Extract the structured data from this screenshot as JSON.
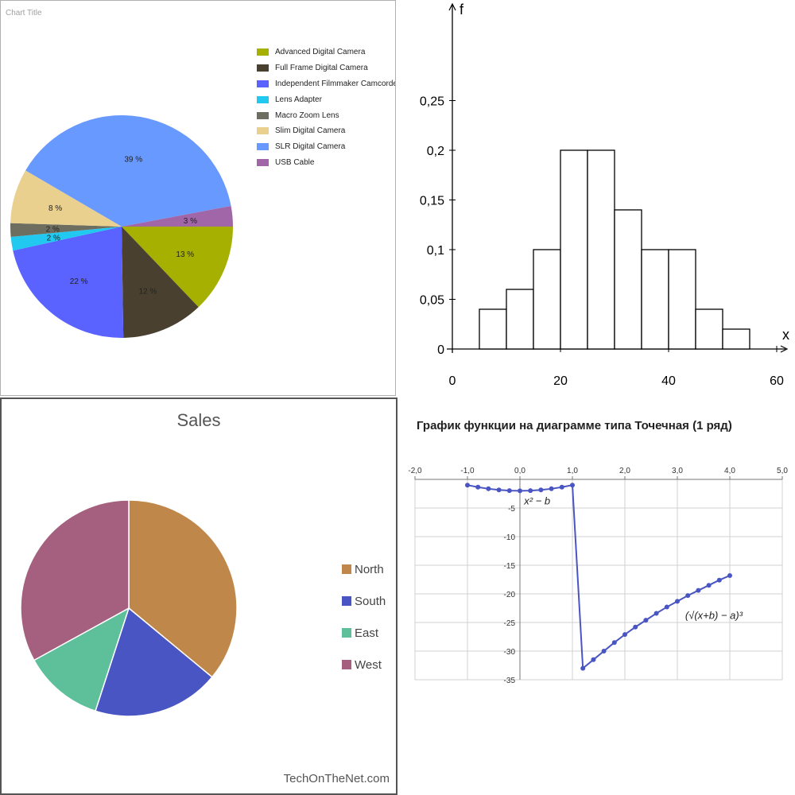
{
  "pie_chart": {
    "title": "Chart Title",
    "legend": [
      {
        "label": "Advanced Digital Camera",
        "color": "#a6b000"
      },
      {
        "label": "Full Frame Digital Camera",
        "color": "#4a4030"
      },
      {
        "label": "Independent Filmmaker Camcorder",
        "color": "#5a62ff"
      },
      {
        "label": "Lens Adapter",
        "color": "#21c8f0"
      },
      {
        "label": "Macro Zoom Lens",
        "color": "#6e6e60"
      },
      {
        "label": "Slim Digital Camera",
        "color": "#ead08e"
      },
      {
        "label": "SLR Digital Camera",
        "color": "#6899ff"
      },
      {
        "label": "USB Cable",
        "color": "#a066a8"
      }
    ]
  },
  "histogram": {
    "x_axis_label": "x",
    "y_axis_label": "f",
    "x_ticks": [
      "0",
      "20",
      "40",
      "60"
    ],
    "y_ticks": [
      "0",
      "0,05",
      "0,1",
      "0,15",
      "0,2",
      "0,25"
    ]
  },
  "sales_chart": {
    "title": "Sales",
    "watermark": "TechOnTheNet.com",
    "legend": [
      {
        "label": "North",
        "color": "#c0874a"
      },
      {
        "label": "South",
        "color": "#4a55c4"
      },
      {
        "label": "East",
        "color": "#5ec09a"
      },
      {
        "label": "West",
        "color": "#a4607e"
      }
    ]
  },
  "scatter_chart": {
    "title": "График функции на диаграмме типа Точечная (1 ряд)",
    "x_ticks": [
      "-2,0",
      "-1,0",
      "0,0",
      "1,0",
      "2,0",
      "3,0",
      "4,0",
      "5,0"
    ],
    "y_ticks": [
      "-5",
      "-10",
      "-15",
      "-20",
      "-25",
      "-30",
      "-35"
    ],
    "annotation_left": "x² − b",
    "annotation_right": "(√(x+b) − a)³",
    "line_color": "#4a55c4"
  },
  "chart_data": [
    {
      "type": "pie",
      "title": "Chart Title",
      "categories": [
        "Advanced Digital Camera",
        "Full Frame Digital Camera",
        "Independent Filmmaker Camcorder",
        "Lens Adapter",
        "Macro Zoom Lens",
        "Slim Digital Camera",
        "SLR Digital Camera",
        "USB Cable"
      ],
      "values": [
        13,
        12,
        22,
        2,
        2,
        8,
        39,
        3
      ],
      "labels": [
        "13 %",
        "12 %",
        "22 %",
        "2 %",
        "2 %",
        "8 %",
        "39 %",
        "3 %"
      ],
      "legend": "right"
    },
    {
      "type": "bar",
      "bins": [
        [
          5,
          10
        ],
        [
          10,
          15
        ],
        [
          15,
          20
        ],
        [
          20,
          25
        ],
        [
          25,
          30
        ],
        [
          30,
          35
        ],
        [
          35,
          40
        ],
        [
          40,
          45
        ],
        [
          45,
          50
        ],
        [
          50,
          55
        ]
      ],
      "values": [
        0.04,
        0.06,
        0.1,
        0.2,
        0.2,
        0.14,
        0.1,
        0.1,
        0.04,
        0.02
      ],
      "xlabel": "x",
      "ylabel": "f",
      "xlim": [
        0,
        60
      ],
      "ylim": [
        0,
        0.25
      ]
    },
    {
      "type": "pie",
      "title": "Sales",
      "categories": [
        "North",
        "South",
        "East",
        "West"
      ],
      "values": [
        36,
        19,
        12,
        33
      ],
      "legend": "right"
    },
    {
      "type": "scatter",
      "title": "График функции на диаграмме типа Точечная (1 ряд)",
      "x": [
        -1.0,
        -0.8,
        -0.6,
        -0.4,
        -0.2,
        0.0,
        0.2,
        0.4,
        0.6,
        0.8,
        1.0,
        1.2,
        1.4,
        1.6,
        1.8,
        2.0,
        2.2,
        2.4,
        2.6,
        2.8,
        3.0,
        3.2,
        3.4,
        3.6,
        3.8,
        4.0
      ],
      "y": [
        -1.0,
        -1.36,
        -1.64,
        -1.84,
        -1.96,
        -2.0,
        -1.96,
        -1.84,
        -1.64,
        -1.36,
        -1.0,
        -33.0,
        -31.5,
        -30.0,
        -28.5,
        -27.1,
        -25.8,
        -24.6,
        -23.4,
        -22.3,
        -21.3,
        -20.3,
        -19.4,
        -18.5,
        -17.6,
        -16.8
      ],
      "xlim": [
        -2,
        5
      ],
      "ylim": [
        -35,
        0
      ],
      "grid": true
    }
  ]
}
